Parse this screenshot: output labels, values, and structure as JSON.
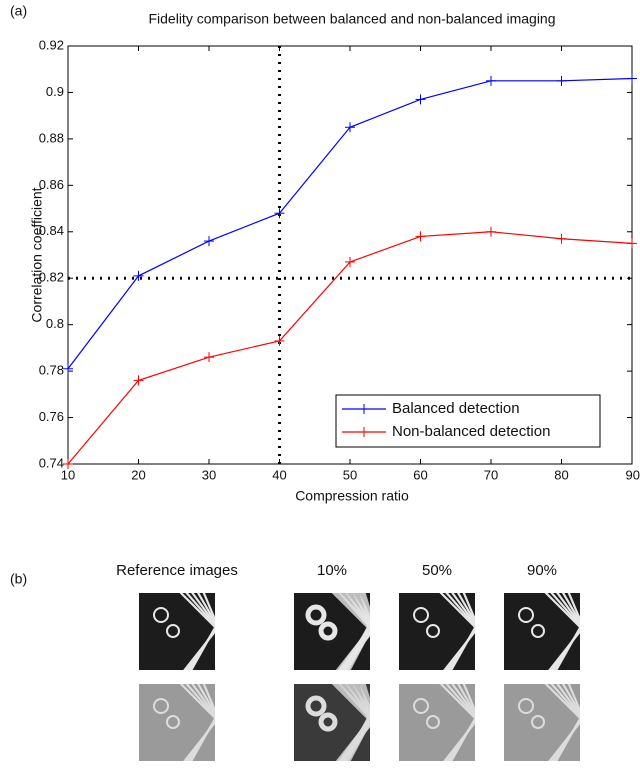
{
  "chart_data": {
    "type": "line",
    "title": "Fidelity comparison between balanced and non-balanced imaging",
    "x_label": "Compression ratio",
    "y_label": "Correlation coefficient",
    "x": [
      10,
      20,
      30,
      40,
      50,
      60,
      70,
      80,
      90
    ],
    "series": [
      {
        "name": "Balanced detection",
        "color": "#0000ff",
        "values": [
          0.781,
          0.821,
          0.836,
          0.848,
          0.885,
          0.897,
          0.905,
          0.905,
          0.906
        ]
      },
      {
        "name": "Non-balanced detection",
        "color": "#ff0000",
        "values": [
          0.74,
          0.776,
          0.786,
          0.793,
          0.827,
          0.838,
          0.84,
          0.837,
          0.835
        ]
      }
    ],
    "xlim": [
      10,
      90
    ],
    "xticks": [
      10,
      20,
      30,
      40,
      50,
      60,
      70,
      80,
      90
    ],
    "ylim": [
      0.74,
      0.92
    ],
    "yticks": [
      0.74,
      0.76,
      0.78,
      0.8,
      0.82,
      0.84,
      0.86,
      0.88,
      0.9,
      0.92
    ],
    "reference_lines": {
      "x": 40,
      "y": 0.82
    },
    "legend": "lower right",
    "grid": false
  },
  "panel_labels": [
    "(a)",
    "(b)"
  ],
  "image_columns": [
    "Reference images",
    "10%",
    "50%",
    "90%"
  ]
}
